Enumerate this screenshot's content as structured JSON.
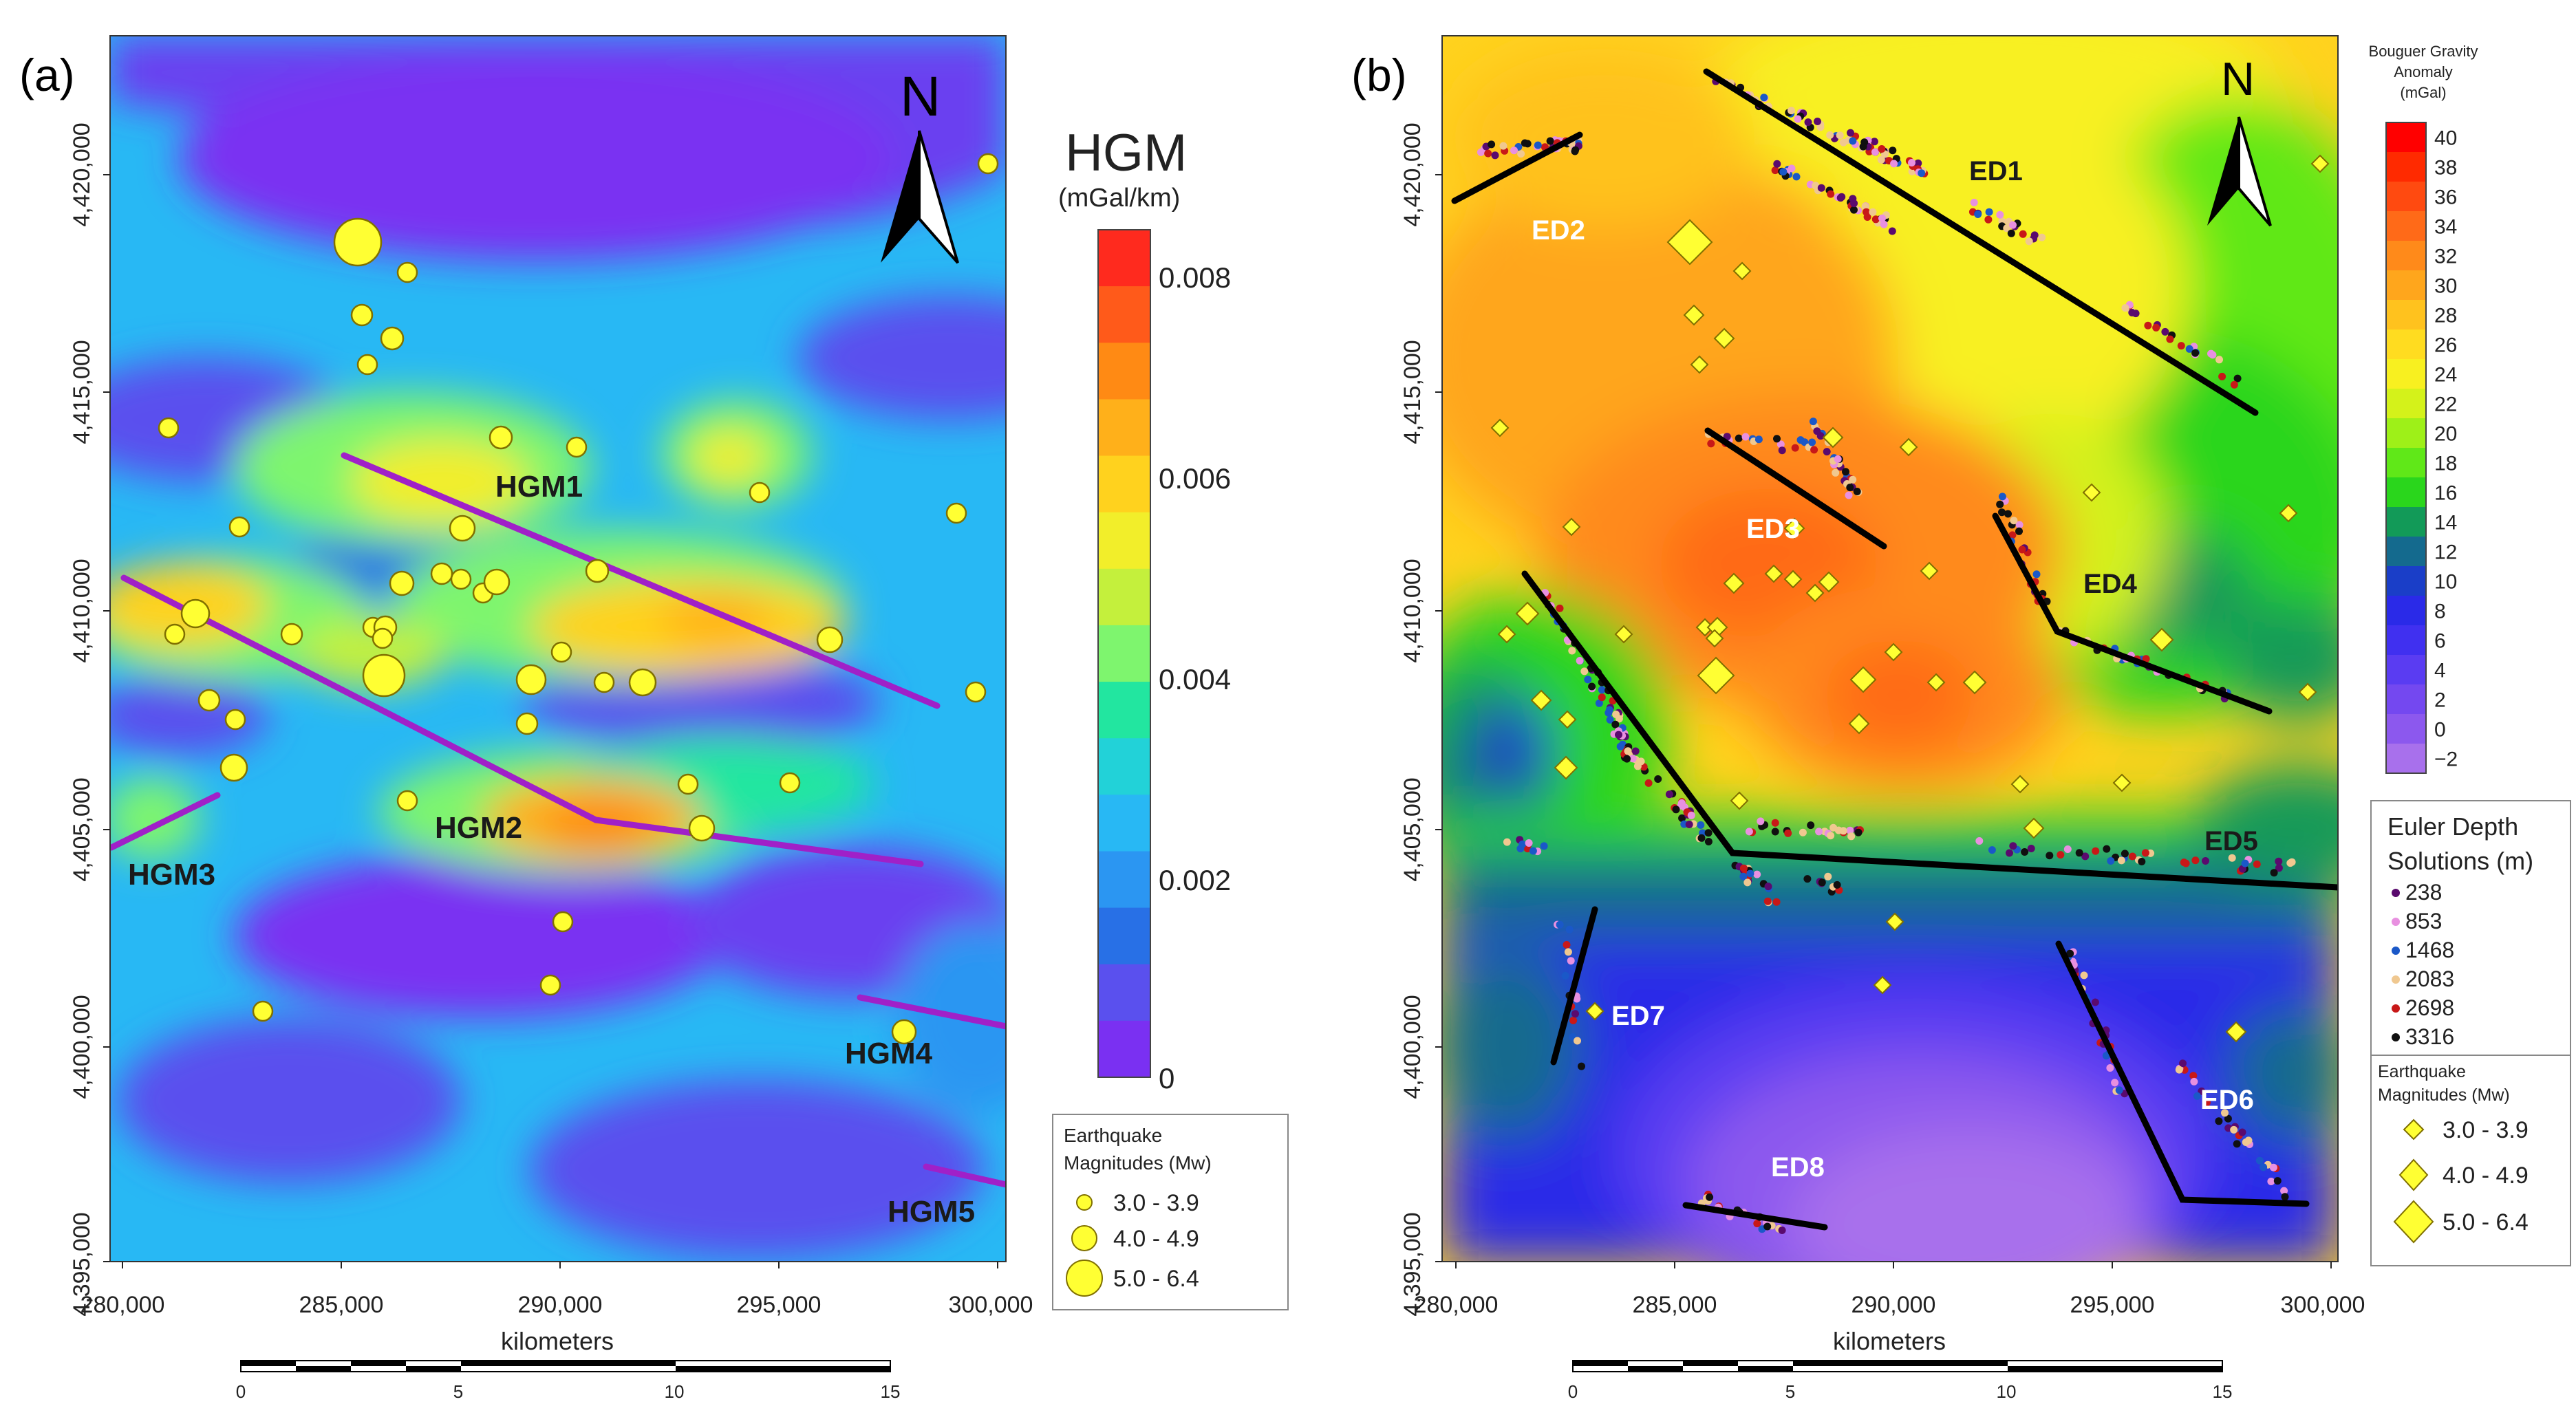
{
  "panels": [
    {
      "id": "a",
      "label": "(a)",
      "north": "N",
      "y_ticks": [
        "4,420,000",
        "4,415,000",
        "4,410,000",
        "4,405,000",
        "4,400,000",
        "4,395,000"
      ],
      "x_ticks": [
        "280,000",
        "285,000",
        "290,000",
        "295,000",
        "300,000"
      ],
      "x_axis_label": "kilometers",
      "scale_labels": [
        "0",
        "5",
        "10",
        "15"
      ],
      "colorbar": {
        "title": "HGM",
        "unit": "(mGal/km)",
        "labels": [
          "0.008",
          "0.006",
          "0.004",
          "0.002",
          "0"
        ],
        "colors": [
          "#ff2a1e",
          "#ff5a1a",
          "#ff8a14",
          "#ffb01a",
          "#ffd21e",
          "#f2ee2a",
          "#c4f03c",
          "#7ef56e",
          "#22e6a0",
          "#22d2d8",
          "#28b8f4",
          "#2b96f2",
          "#2870e6",
          "#5a50ee",
          "#7a30f2"
        ]
      },
      "lineaments": [
        {
          "label": "HGM1",
          "color": "#a020c8"
        },
        {
          "label": "HGM2",
          "color": "#a020c8"
        },
        {
          "label": "HGM3",
          "color": "#a020c8"
        },
        {
          "label": "HGM4",
          "color": "#a020c8"
        },
        {
          "label": "HGM5",
          "color": "#a020c8"
        }
      ],
      "legend": {
        "title_line1": "Earthquake",
        "title_line2": "Magnitudes (Mw)",
        "items": [
          "3.0 - 3.9",
          "4.0 - 4.9",
          "5.0 - 6.4"
        ],
        "marker": "circle",
        "color": "#ffff33"
      }
    },
    {
      "id": "b",
      "label": "(b)",
      "north": "N",
      "y_ticks": [
        "4,420,000",
        "4,415,000",
        "4,410,000",
        "4,405,000",
        "4,400,000",
        "4,395,000"
      ],
      "x_ticks": [
        "280,000",
        "285,000",
        "290,000",
        "295,000",
        "300,000"
      ],
      "x_axis_label": "kilometers",
      "scale_labels": [
        "0",
        "5",
        "10",
        "15"
      ],
      "colorbar": {
        "title_line1": "Bouguer Gravity",
        "title_line2": "Anomaly",
        "title_line3": "(mGal)",
        "labels": [
          "40",
          "38",
          "36",
          "34",
          "32",
          "30",
          "28",
          "26",
          "24",
          "22",
          "20",
          "18",
          "16",
          "14",
          "12",
          "10",
          "8",
          "6",
          "4",
          "2",
          "0",
          "−2"
        ],
        "colors": [
          "#ff0000",
          "#ff2a00",
          "#ff4a10",
          "#ff6a18",
          "#ff8a1a",
          "#ffa61c",
          "#ffc21e",
          "#ffdc20",
          "#f8f020",
          "#d4f21a",
          "#9ef018",
          "#60e818",
          "#2ad61c",
          "#129a58",
          "#146a8e",
          "#1a3ec8",
          "#2a2ae8",
          "#4030f0",
          "#5a3cf2",
          "#7448f0",
          "#8c58ee",
          "#a870ec"
        ]
      },
      "lineaments": [
        {
          "label": "ED1"
        },
        {
          "label": "ED2"
        },
        {
          "label": "ED3"
        },
        {
          "label": "ED4"
        },
        {
          "label": "ED5"
        },
        {
          "label": "ED6"
        },
        {
          "label": "ED7"
        },
        {
          "label": "ED8"
        }
      ],
      "euler_legend": {
        "title_line1": "Euler Depth",
        "title_line2": "Solutions (m)",
        "items": [
          {
            "label": "238",
            "color": "#5a0a6e"
          },
          {
            "label": "853",
            "color": "#e890e0"
          },
          {
            "label": "1468",
            "color": "#1a58c8"
          },
          {
            "label": "2083",
            "color": "#f0c890"
          },
          {
            "label": "2698",
            "color": "#c81818"
          },
          {
            "label": "3316",
            "color": "#101010"
          }
        ]
      },
      "legend": {
        "title_line1": "Earthquake",
        "title_line2": "Magnitudes (Mw)",
        "items": [
          "3.0 - 3.9",
          "4.0 - 4.9",
          "5.0 - 6.4"
        ],
        "marker": "diamond",
        "color": "#ffff33"
      }
    }
  ]
}
